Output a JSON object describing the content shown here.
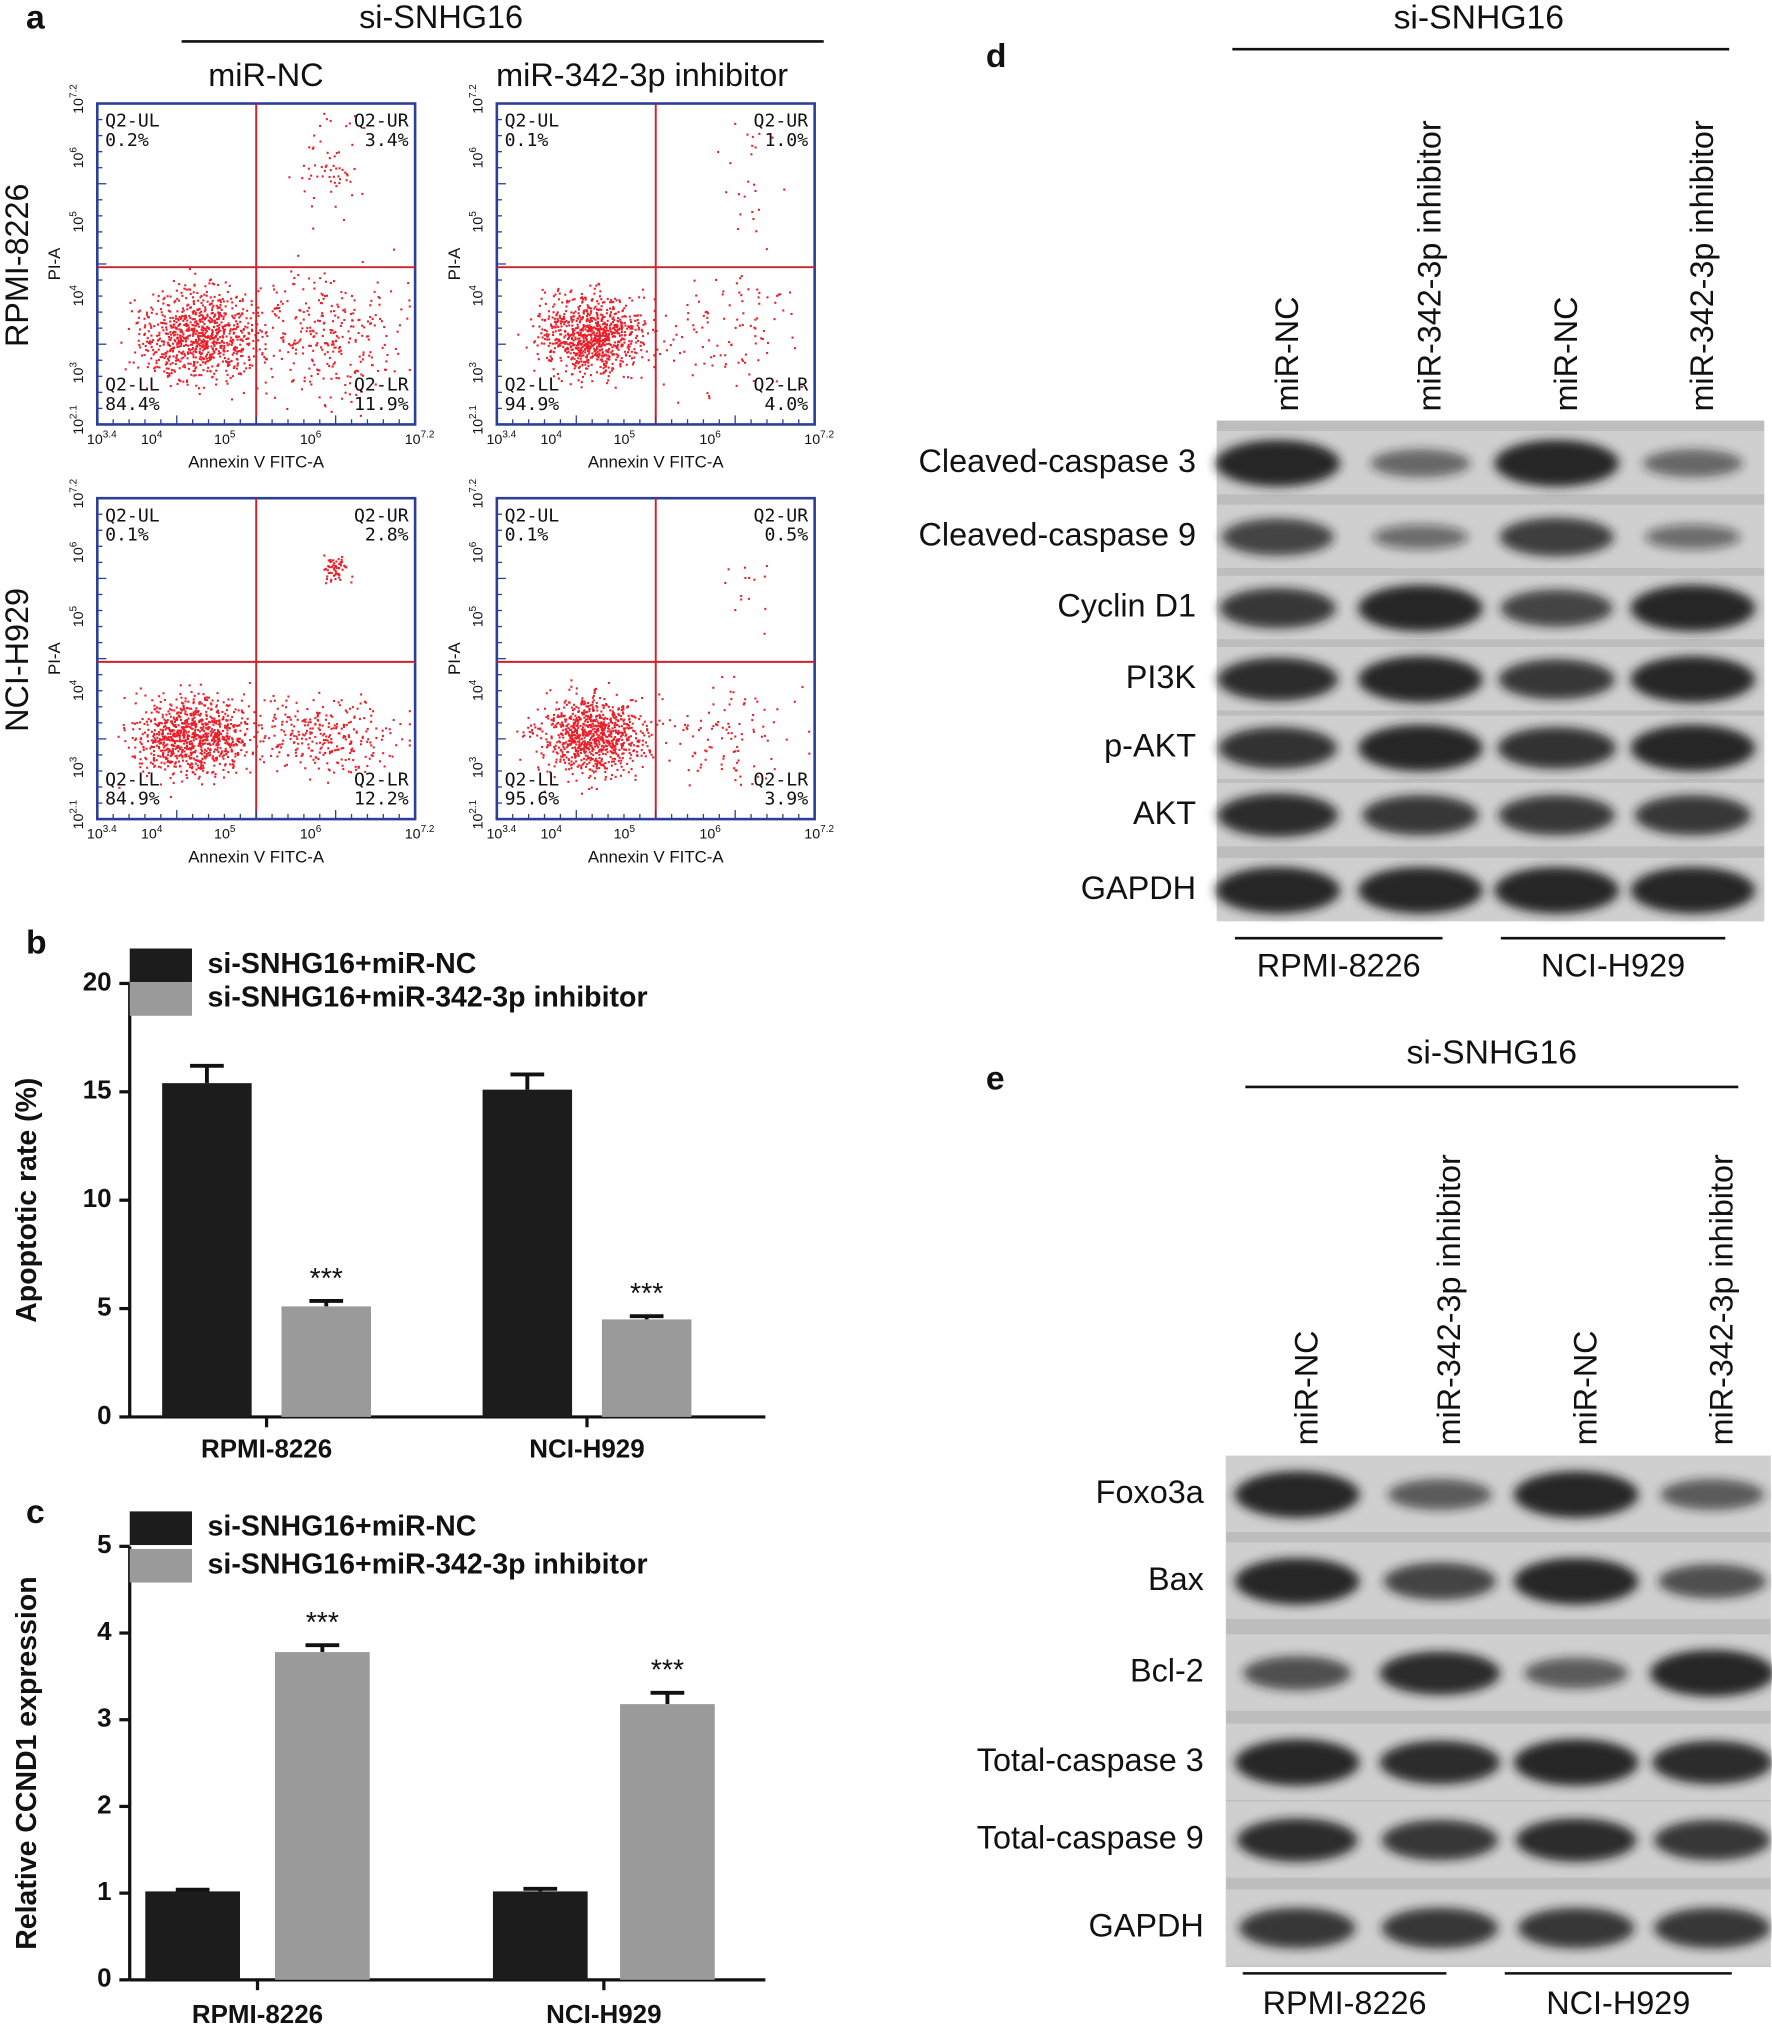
{
  "flow_cytometry": {
    "label": "a",
    "group": "si-SNHG16",
    "columns": [
      "miR-NC",
      "miR-342-3p inhibitor"
    ],
    "rows": [
      "RPMI-8226",
      "NCI-H929"
    ],
    "x_axis_label": "Annexin V FITC-A",
    "y_axis_label": "PI-A",
    "xticks": [
      {
        "base": "10",
        "exp": "3.4"
      },
      {
        "base": "10",
        "exp": "4"
      },
      {
        "base": "10",
        "exp": "5"
      },
      {
        "base": "10",
        "exp": "6"
      },
      {
        "base": "10",
        "exp": "7.2"
      }
    ],
    "yticks": [
      {
        "base": "10",
        "exp": "2.1"
      },
      {
        "base": "10",
        "exp": "3"
      },
      {
        "base": "10",
        "exp": "4"
      },
      {
        "base": "10",
        "exp": "5"
      },
      {
        "base": "10",
        "exp": "6"
      },
      {
        "base": "10",
        "exp": "7.2"
      }
    ],
    "plots": [
      {
        "quadrants": [
          {
            "name": "Q2-UL",
            "percent": "0.2%"
          },
          {
            "name": "Q2-UR",
            "percent": "3.4%"
          },
          {
            "name": "Q2-LL",
            "percent": "84.4%"
          },
          {
            "name": "Q2-LR",
            "percent": "11.9%"
          }
        ]
      },
      {
        "quadrants": [
          {
            "name": "Q2-UL",
            "percent": "0.1%"
          },
          {
            "name": "Q2-UR",
            "percent": "1.0%"
          },
          {
            "name": "Q2-LL",
            "percent": "94.9%"
          },
          {
            "name": "Q2-LR",
            "percent": "4.0%"
          }
        ]
      },
      {
        "quadrants": [
          {
            "name": "Q2-UL",
            "percent": "0.1%"
          },
          {
            "name": "Q2-UR",
            "percent": "2.8%"
          },
          {
            "name": "Q2-LL",
            "percent": "84.9%"
          },
          {
            "name": "Q2-LR",
            "percent": "12.2%"
          }
        ]
      },
      {
        "quadrants": [
          {
            "name": "Q2-UL",
            "percent": "0.1%"
          },
          {
            "name": "Q2-UR",
            "percent": "0.5%"
          },
          {
            "name": "Q2-LL",
            "percent": "95.6%"
          },
          {
            "name": "Q2-LR",
            "percent": "3.9%"
          }
        ]
      }
    ]
  },
  "chart_data": [
    {
      "type": "bar",
      "panel_label": "b",
      "y_label": "Apoptotic rate (%)",
      "categories": [
        "RPMI-8226",
        "NCI-H929"
      ],
      "series": [
        {
          "name": "si-SNHG16+miR-NC",
          "color": "#1c1c1c",
          "values": [
            15.4,
            15.1
          ],
          "errors": [
            0.8,
            0.7
          ]
        },
        {
          "name": "si-SNHG16+miR-342-3p inhibitor",
          "color": "#9a9a9a",
          "values": [
            5.1,
            4.5
          ],
          "errors": [
            0.25,
            0.15
          ],
          "significance": [
            "***",
            "***"
          ]
        }
      ],
      "ylim": [
        0,
        20
      ],
      "yticks": [
        0,
        5,
        10,
        15,
        20
      ]
    },
    {
      "type": "bar",
      "panel_label": "c",
      "y_label": "Relative CCND1 expression",
      "categories": [
        "RPMI-8226",
        "NCI-H929"
      ],
      "series": [
        {
          "name": "si-SNHG16+miR-NC",
          "color": "#1c1c1c",
          "values": [
            1.02,
            1.02
          ],
          "errors": [
            0.02,
            0.03
          ]
        },
        {
          "name": "si-SNHG16+miR-342-3p inhibitor",
          "color": "#9a9a9a",
          "values": [
            3.78,
            3.18
          ],
          "errors": [
            0.08,
            0.13
          ],
          "significance": [
            "***",
            "***"
          ]
        }
      ],
      "ylim": [
        0,
        5
      ],
      "yticks": [
        0,
        1,
        2,
        3,
        4,
        5
      ]
    }
  ],
  "western_blots": [
    {
      "label": "d",
      "group": "si-SNHG16",
      "lanes": [
        "miR-NC",
        "miR-342-3p inhibitor",
        "miR-NC",
        "miR-342-3p inhibitor"
      ],
      "proteins": [
        "Cleaved-caspase 3",
        "Cleaved-caspase 9",
        "Cyclin D1",
        "PI3K",
        "p-AKT",
        "AKT",
        "GAPDH"
      ],
      "cell_lines": [
        "RPMI-8226",
        "NCI-H929"
      ]
    },
    {
      "label": "e",
      "group": "si-SNHG16",
      "lanes": [
        "miR-NC",
        "miR-342-3p inhibitor",
        "miR-NC",
        "miR-342-3p inhibitor"
      ],
      "proteins": [
        "Foxo3a",
        "Bax",
        "Bcl-2",
        "Total-caspase 3",
        "Total-caspase 9",
        "GAPDH"
      ],
      "cell_lines": [
        "RPMI-8226",
        "NCI-H929"
      ]
    }
  ]
}
